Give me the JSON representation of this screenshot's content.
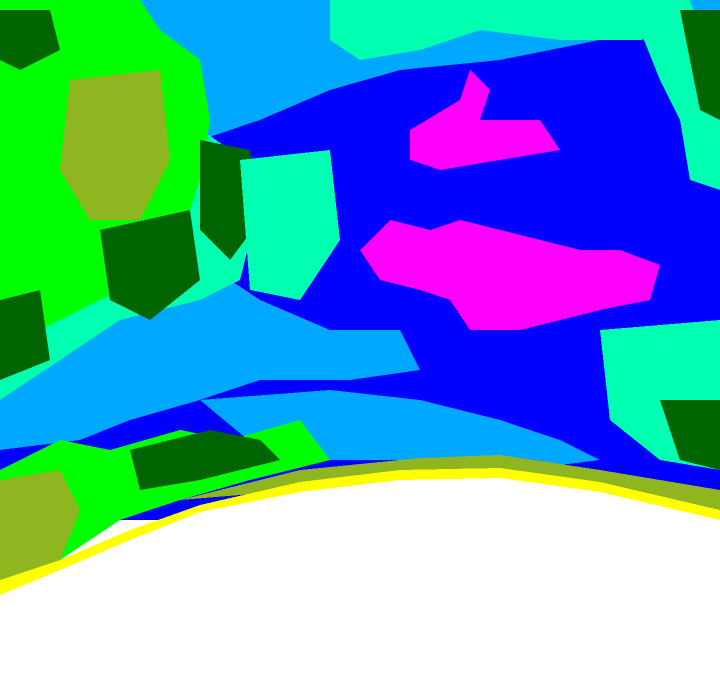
{
  "map": {
    "type": "classified raster",
    "classes": [
      {
        "color": "#006400"
      },
      {
        "color": "#00ff00"
      },
      {
        "color": "#8fb521"
      },
      {
        "color": "#00ffb0"
      },
      {
        "color": "#00a8ff"
      },
      {
        "color": "#0000ff"
      },
      {
        "color": "#ff00ff"
      },
      {
        "color": "#ffff00"
      },
      {
        "color": "#ffffff"
      }
    ]
  }
}
